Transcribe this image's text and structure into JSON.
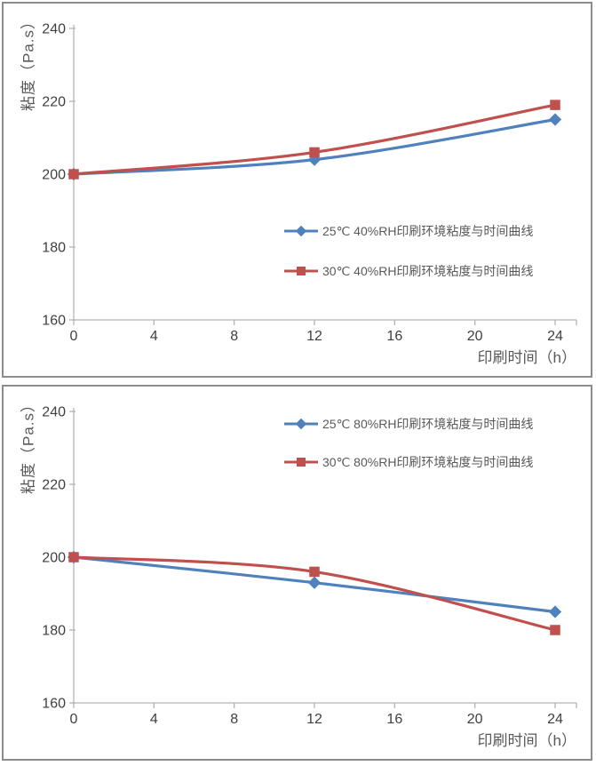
{
  "figure": {
    "background": "#ffffff",
    "panel_border_color": "#8c8c8c"
  },
  "axis_style": {
    "line_color": "#b3b3b3",
    "tick_label_color": "#3f3f3f",
    "title_color": "#595959",
    "tick_label_font_px": 16
  },
  "chart_data": [
    {
      "type": "line",
      "title": "",
      "xlabel": "印刷时间（h）",
      "ylabel": "粘度（Pa.s）",
      "xlim": [
        0,
        24
      ],
      "ylim": [
        160,
        240
      ],
      "xticks": [
        0,
        4,
        8,
        12,
        16,
        20,
        24
      ],
      "yticks": [
        160,
        180,
        200,
        220,
        240
      ],
      "grid": false,
      "legend_position": "center-right",
      "x": [
        0,
        12,
        24
      ],
      "series": [
        {
          "name": "25℃ 40%RH印刷环境粘度与时间曲线",
          "color": "#4F81BD",
          "marker": "diamond",
          "values": [
            200,
            204,
            215
          ]
        },
        {
          "name": "30℃ 40%RH印刷环境粘度与时间曲线",
          "color": "#C0504D",
          "marker": "square",
          "values": [
            200,
            206,
            219
          ]
        }
      ]
    },
    {
      "type": "line",
      "title": "",
      "xlabel": "印刷时间（h）",
      "ylabel": "粘度（Pa.s）",
      "xlim": [
        0,
        24
      ],
      "ylim": [
        160,
        240
      ],
      "xticks": [
        0,
        4,
        8,
        12,
        16,
        20,
        24
      ],
      "yticks": [
        160,
        180,
        200,
        220,
        240
      ],
      "grid": false,
      "legend_position": "top-right",
      "x": [
        0,
        12,
        24
      ],
      "series": [
        {
          "name": "25℃ 80%RH印刷环境粘度与时间曲线",
          "color": "#4F81BD",
          "marker": "diamond",
          "values": [
            200,
            193,
            185
          ]
        },
        {
          "name": "30℃ 80%RH印刷环境粘度与时间曲线",
          "color": "#C0504D",
          "marker": "square",
          "values": [
            200,
            196,
            180
          ]
        }
      ]
    }
  ]
}
